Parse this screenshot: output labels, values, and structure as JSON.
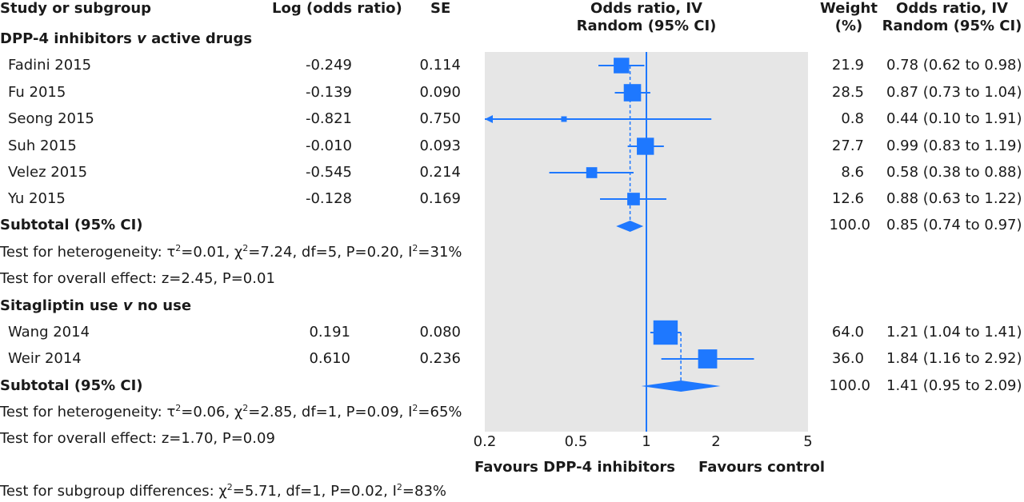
{
  "header": {
    "study": "Study or subgroup",
    "log_or": "Log (odds ratio)",
    "se": "SE",
    "plot_title_1": "Odds ratio, IV",
    "plot_title_2": "Random (95% CI)",
    "weight_1": "Weight",
    "weight_2": "(%)",
    "or_1": "Odds ratio, IV",
    "or_2": "Random (95% CI)"
  },
  "groups": [
    {
      "title_a": "DPP-4 inhibitors ",
      "title_v": "v",
      "title_b": " active drugs",
      "studies": [
        {
          "name": "Fadini 2015",
          "log_or": "-0.249",
          "se": "0.114",
          "weight": "21.9",
          "ci_text": "0.78 (0.62 to 0.98)"
        },
        {
          "name": "Fu 2015",
          "log_or": "-0.139",
          "se": "0.090",
          "weight": "28.5",
          "ci_text": "0.87 (0.73 to 1.04)"
        },
        {
          "name": "Seong 2015",
          "log_or": "-0.821",
          "se": "0.750",
          "weight": "0.8",
          "ci_text": "0.44 (0.10 to 1.91)"
        },
        {
          "name": "Suh 2015",
          "log_or": "-0.010",
          "se": "0.093",
          "weight": "27.7",
          "ci_text": "0.99 (0.83 to 1.19)"
        },
        {
          "name": "Velez 2015",
          "log_or": "-0.545",
          "se": "0.214",
          "weight": "8.6",
          "ci_text": "0.58 (0.38 to 0.88)"
        },
        {
          "name": "Yu 2015",
          "log_or": "-0.128",
          "se": "0.169",
          "weight": "12.6",
          "ci_text": "0.88 (0.63 to 1.22)"
        }
      ],
      "subtotal": {
        "label": "Subtotal (95% CI)",
        "weight": "100.0",
        "ci_text": "0.85 (0.74 to 0.97)"
      },
      "het": {
        "prefix": "Test for heterogeneity: τ",
        "tau_sup": "2",
        "a": "=0.01, χ",
        "chi_sup": "2",
        "b": "=7.24, df=5, P=0.20, I",
        "i_sup": "2",
        "c": "=31%"
      },
      "overall": "Test for overall effect: z=2.45, P=0.01"
    },
    {
      "title_a": "Sitagliptin use ",
      "title_v": "v",
      "title_b": " no use",
      "studies": [
        {
          "name": "Wang 2014",
          "log_or": "0.191",
          "se": "0.080",
          "weight": "64.0",
          "ci_text": "1.21 (1.04 to 1.41)"
        },
        {
          "name": "Weir 2014",
          "log_or": "0.610",
          "se": "0.236",
          "weight": "36.0",
          "ci_text": "1.84 (1.16 to 2.92)"
        }
      ],
      "subtotal": {
        "label": "Subtotal (95% CI)",
        "weight": "100.0",
        "ci_text": "1.41 (0.95 to 2.09)"
      },
      "het": {
        "prefix": "Test for heterogeneity: τ",
        "tau_sup": "2",
        "a": "=0.06, χ",
        "chi_sup": "2",
        "b": "=2.85, df=1, P=0.09, I",
        "i_sup": "2",
        "c": "=65%"
      },
      "overall": "Test for overall effect: z=1.70, P=0.09"
    }
  ],
  "footer": {
    "favours_left": "Favours DPP-4 inhibitors",
    "favours_right": "Favours control",
    "subgroup": {
      "prefix": "Test for subgroup differences:  χ",
      "chi_sup": "2",
      "a": "=5.71, df=1, P=0.02, I",
      "i_sup": "2",
      "b": "=83%"
    }
  },
  "chart_data": {
    "type": "forest",
    "x_scale": "log",
    "xlim": [
      0.2,
      5
    ],
    "ticks": [
      "0.2",
      "0.5",
      "1",
      "2",
      "5"
    ],
    "tick_values": [
      0.2,
      0.5,
      1,
      2,
      5
    ],
    "null_value": 1,
    "colors": {
      "marker": "#1e78ff",
      "panel": "#e6e6e6",
      "null_line": "#1e78ff"
    },
    "groups": [
      {
        "studies": [
          {
            "or": 0.78,
            "lo": 0.62,
            "hi": 0.98,
            "weight": 21.9
          },
          {
            "or": 0.87,
            "lo": 0.73,
            "hi": 1.04,
            "weight": 28.5
          },
          {
            "or": 0.44,
            "lo": 0.1,
            "hi": 1.91,
            "weight": 0.8
          },
          {
            "or": 0.99,
            "lo": 0.83,
            "hi": 1.19,
            "weight": 27.7
          },
          {
            "or": 0.58,
            "lo": 0.38,
            "hi": 0.88,
            "weight": 8.6
          },
          {
            "or": 0.88,
            "lo": 0.63,
            "hi": 1.22,
            "weight": 12.6
          }
        ],
        "subtotal": {
          "or": 0.85,
          "lo": 0.74,
          "hi": 0.97
        }
      },
      {
        "studies": [
          {
            "or": 1.21,
            "lo": 1.04,
            "hi": 1.41,
            "weight": 64.0
          },
          {
            "or": 1.84,
            "lo": 1.16,
            "hi": 2.92,
            "weight": 36.0
          }
        ],
        "subtotal": {
          "or": 1.41,
          "lo": 0.95,
          "hi": 2.09
        }
      }
    ]
  }
}
